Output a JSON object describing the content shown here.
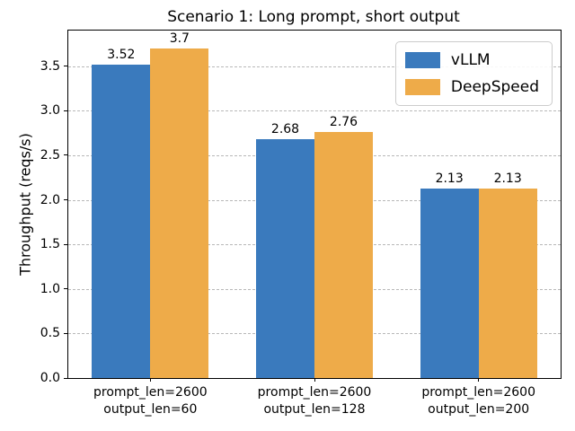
{
  "chart_data": {
    "type": "bar",
    "title": "Scenario 1: Long prompt, short output",
    "xlabel": "",
    "ylabel": "Throughput (reqs/s)",
    "categories": [
      [
        "prompt_len=2600",
        "output_len=60"
      ],
      [
        "prompt_len=2600",
        "output_len=128"
      ],
      [
        "prompt_len=2600",
        "output_len=200"
      ]
    ],
    "series": [
      {
        "name": "vLLM",
        "color": "#3a7abd",
        "values": [
          3.52,
          2.68,
          2.13
        ]
      },
      {
        "name": "DeepSpeed",
        "color": "#eeab49",
        "values": [
          3.7,
          2.76,
          2.13
        ]
      }
    ],
    "value_labels": [
      [
        "3.52",
        "2.68",
        "2.13"
      ],
      [
        "3.7",
        "2.76",
        "2.13"
      ]
    ],
    "ylim": [
      0,
      3.9
    ],
    "yticks": [
      0.0,
      0.5,
      1.0,
      1.5,
      2.0,
      2.5,
      3.0,
      3.5
    ],
    "grid": "horizontal-dashed",
    "grid_color": "#b8b8b8",
    "legend_position": "upper right"
  }
}
